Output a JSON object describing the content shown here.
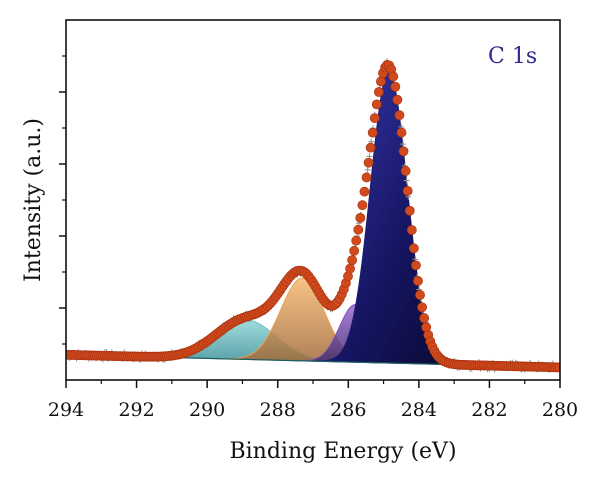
{
  "chart_data": {
    "type": "line",
    "title": "",
    "annotation": "C 1s",
    "annotation_color": "#2e2a8c",
    "xlabel": "Binding Energy (eV)",
    "ylabel": "Intensity (a.u.)",
    "x_reversed": true,
    "xlim": [
      294,
      280
    ],
    "ylim": [
      0,
      100
    ],
    "x_ticks": [
      294,
      292,
      290,
      288,
      286,
      284,
      282,
      280
    ],
    "x_tick_labels": [
      "294",
      "292",
      "290",
      "288",
      "286",
      "284",
      "282",
      "280"
    ],
    "y_ticks_major": [
      20,
      40,
      60,
      80
    ],
    "grid": false,
    "legend": "none",
    "background": {
      "x0": 294,
      "y0": 7.0,
      "x1": 280,
      "y1": 3.5
    },
    "peaks": [
      {
        "center": 288.9,
        "height": 11.0,
        "sigma": 0.85,
        "color": "#6fc3c8"
      },
      {
        "center": 287.3,
        "height": 23.0,
        "sigma": 0.62,
        "color": "#f0a050"
      },
      {
        "center": 285.8,
        "height": 16.0,
        "sigma": 0.45,
        "color": "#8050b8"
      },
      {
        "center": 284.85,
        "height": 81.0,
        "sigma": 0.52,
        "color": "#1a1a6e"
      }
    ],
    "envelope_color": "#d04a1e",
    "raw_color": "#8a8a8a"
  }
}
